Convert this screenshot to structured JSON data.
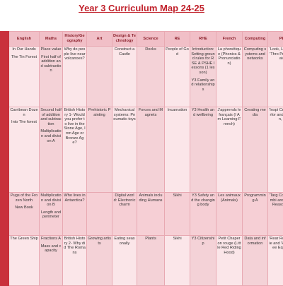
{
  "header": {
    "title": "Year 3 Curriculum Map 24-25"
  },
  "table": {
    "columns": [
      "English",
      "Maths",
      "History/Geography",
      "Art",
      "Design & Technology",
      "Science",
      "RE",
      "RHE",
      "French",
      "Computing",
      "PE"
    ],
    "rows": [
      {
        "cells": [
          [
            "In Our Hands",
            "The Tin Forest"
          ],
          [
            "Place value",
            "First half of addition and subtraction"
          ],
          [
            "Why do people live near volcanoes?"
          ],
          [],
          [
            "Construct a Castle"
          ],
          [
            "Rocks"
          ],
          [
            "People of God"
          ],
          [
            "Introduction: Setting ground rules for RSE & PSHE lessons (1 lesson)",
            "Y3 Family and relationships"
          ],
          [
            "La phonétique (Phonics & Pronunciation)"
          ],
          [
            "Computing systems and networks"
          ],
          [
            "'Look, L Avoid' 'Thro Prepa Catc"
          ]
        ]
      },
      {
        "cells": [
          [
            "Carribean Dozen",
            "Into The forest"
          ],
          [
            "Second half of addition and subtraction",
            "Multiplication and division A"
          ],
          [
            "British History 1- Would you prefer to live in the Stone Age, Iron Age or Bronze Age?"
          ],
          [
            "Prehistoric Painting"
          ],
          [
            "Mechanical systems: Pneumatic toys"
          ],
          [
            "Forces and Magnets"
          ],
          [
            "Incarnation"
          ],
          [
            "Y3 Health and wellbeing"
          ],
          [
            "J'apprends le français (I Am Learning French)"
          ],
          [
            "Creating media"
          ],
          [
            "'Inspi Creat Perfor and 'D Win, L"
          ]
        ]
      },
      {
        "cells": [
          [
            "Pugs of the Frozen North",
            "New Book"
          ],
          [
            "Multiplication and division B",
            "Length and perimeter"
          ],
          [
            "Who lives in Antarctica?"
          ],
          [],
          [
            "Digital world: Electronic charm"
          ],
          [
            "Animals including Humans"
          ],
          [
            "Sikhi"
          ],
          [
            "Y3 Safety and the changing body"
          ],
          [
            "Les animaux (Animals)"
          ],
          [
            "Programming A"
          ],
          [
            "'Targ Contr Combi and 'Strik Reaso Rall"
          ]
        ]
      },
      {
        "cells": [
          [
            "The Green Ship"
          ],
          [
            "Fractions A",
            "Mass and capacity"
          ],
          [
            "British History 2- Why did The Romans"
          ],
          [
            "Growing artists"
          ],
          [
            "Eating seasonally"
          ],
          [
            "Plants"
          ],
          [
            "Sikhi"
          ],
          [
            "Y3 Citizenship"
          ],
          [
            "Petit Chaperon rouge (Little Red Riding Hood)"
          ],
          [
            "Data and information"
          ],
          [
            "'Rear Roll Retrie and 'Hand Fee Equipm"
          ]
        ]
      }
    ]
  }
}
